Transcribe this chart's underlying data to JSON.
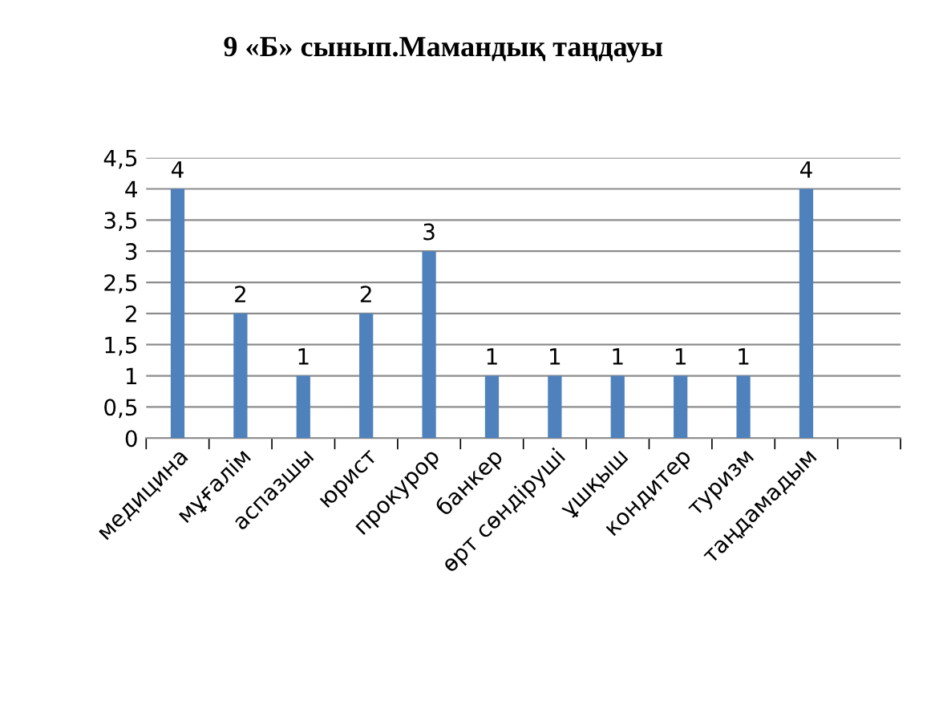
{
  "chart_data": {
    "type": "bar",
    "title": "9 «Б» сынып.Мамандық таңдауы",
    "categories": [
      "медицина",
      "мұғалім",
      "аспазшы",
      "юрист",
      "прокурор",
      "банкер",
      "өрт сөндіруші",
      "ұшқыш",
      "кондитер",
      "туризм",
      "таңдамадым",
      null
    ],
    "values": [
      4,
      2,
      1,
      2,
      3,
      1,
      1,
      1,
      1,
      1,
      4,
      null
    ],
    "color": "#4f81bd",
    "ylim": [
      0,
      4.5
    ],
    "yticks": [
      {
        "value": 0,
        "label": "0"
      },
      {
        "value": 0.5,
        "label": "0,5"
      },
      {
        "value": 1,
        "label": "1"
      },
      {
        "value": 1.5,
        "label": "1,5"
      },
      {
        "value": 2,
        "label": "2"
      },
      {
        "value": 2.5,
        "label": "2,5"
      },
      {
        "value": 3,
        "label": "3"
      },
      {
        "value": 3.5,
        "label": "3,5"
      },
      {
        "value": 4,
        "label": "4"
      },
      {
        "value": 4.5,
        "label": "4,5"
      }
    ],
    "grid": "y",
    "data_labels": true
  }
}
